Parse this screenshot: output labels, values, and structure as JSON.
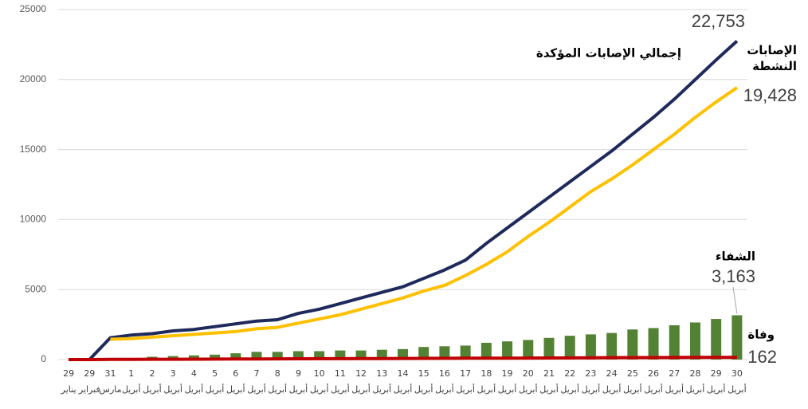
{
  "chart_data": {
    "type": "combo",
    "categories": [
      "29",
      "29",
      "31",
      "1",
      "2",
      "3",
      "4",
      "5",
      "6",
      "7",
      "8",
      "9",
      "10",
      "11",
      "12",
      "13",
      "14",
      "15",
      "16",
      "17",
      "18",
      "19",
      "20",
      "21",
      "22",
      "23",
      "24",
      "25",
      "26",
      "27",
      "28",
      "29",
      "30"
    ],
    "category_months": [
      "يناير",
      "فبراير",
      "مارس",
      "أبريل",
      "أبريل",
      "أبريل",
      "أبريل",
      "أبريل",
      "أبريل",
      "أبريل",
      "أبريل",
      "أبريل",
      "أبريل",
      "أبريل",
      "أبريل",
      "أبريل",
      "أبريل",
      "أبريل",
      "أبريل",
      "أبريل",
      "أبريل",
      "أبريل",
      "أبريل",
      "أبريل",
      "أبريل",
      "أبريل",
      "أبريل",
      "أبريل",
      "أبريل",
      "أبريل",
      "أبريل",
      "أبريل",
      "أبريل"
    ],
    "ylim": [
      0,
      25000
    ],
    "yticks": [
      0,
      5000,
      10000,
      15000,
      20000,
      25000
    ],
    "grid": true,
    "series": [
      {
        "name": "الشفاء",
        "kind": "bar",
        "color": "#548235",
        "values": [
          0,
          0,
          0,
          100,
          200,
          250,
          300,
          350,
          450,
          550,
          550,
          600,
          600,
          650,
          650,
          700,
          750,
          900,
          950,
          1000,
          1200,
          1300,
          1400,
          1550,
          1700,
          1800,
          1900,
          2150,
          2250,
          2450,
          2650,
          2900,
          3163
        ],
        "value_labels": [
          null,
          null,
          null,
          null,
          null,
          null,
          null,
          null,
          null,
          null,
          null,
          null,
          null,
          null,
          null,
          null,
          null,
          null,
          null,
          null,
          null,
          null,
          null,
          null,
          null,
          null,
          null,
          null,
          null,
          null,
          null,
          null,
          "3,163"
        ]
      },
      {
        "name": "إجمالي الإصابات المؤكدة",
        "kind": "line",
        "color": "#1f2a5c",
        "values": [
          0,
          0,
          1560,
          1750,
          1850,
          2050,
          2150,
          2350,
          2550,
          2750,
          2850,
          3300,
          3600,
          4000,
          4400,
          4800,
          5200,
          5800,
          6400,
          7100,
          8300,
          9400,
          10500,
          11600,
          12700,
          13800,
          14900,
          16100,
          17300,
          18600,
          20000,
          21400,
          22753
        ],
        "value_labels": [
          null,
          null,
          null,
          null,
          null,
          null,
          null,
          null,
          null,
          null,
          null,
          null,
          null,
          null,
          null,
          null,
          null,
          null,
          null,
          null,
          null,
          null,
          null,
          null,
          null,
          null,
          null,
          null,
          null,
          null,
          null,
          null,
          "22,753"
        ]
      },
      {
        "name": "الإصابات النشطة",
        "kind": "line",
        "color": "#ffc000",
        "values": [
          null,
          null,
          1450,
          1500,
          1600,
          1700,
          1800,
          1900,
          2000,
          2200,
          2300,
          2600,
          2900,
          3200,
          3600,
          4000,
          4400,
          4900,
          5300,
          6000,
          6800,
          7700,
          8800,
          9800,
          10900,
          12000,
          12900,
          13900,
          15000,
          16100,
          17300,
          18400,
          19428
        ],
        "value_labels": [
          null,
          null,
          null,
          null,
          null,
          null,
          null,
          null,
          null,
          null,
          null,
          null,
          null,
          null,
          null,
          null,
          null,
          null,
          null,
          null,
          null,
          null,
          null,
          null,
          null,
          null,
          null,
          null,
          null,
          null,
          null,
          null,
          "19,428"
        ]
      },
      {
        "name": "وفاة",
        "kind": "line",
        "color": "#c00000",
        "values": [
          0,
          0,
          10,
          15,
          20,
          25,
          30,
          35,
          40,
          45,
          50,
          55,
          60,
          65,
          70,
          75,
          80,
          85,
          90,
          95,
          100,
          105,
          110,
          115,
          120,
          125,
          135,
          140,
          145,
          150,
          155,
          158,
          162
        ],
        "value_labels": [
          null,
          null,
          null,
          null,
          null,
          null,
          null,
          null,
          null,
          null,
          null,
          null,
          null,
          null,
          null,
          null,
          null,
          null,
          null,
          null,
          null,
          null,
          null,
          null,
          null,
          null,
          null,
          null,
          null,
          null,
          null,
          null,
          "162"
        ]
      }
    ]
  }
}
